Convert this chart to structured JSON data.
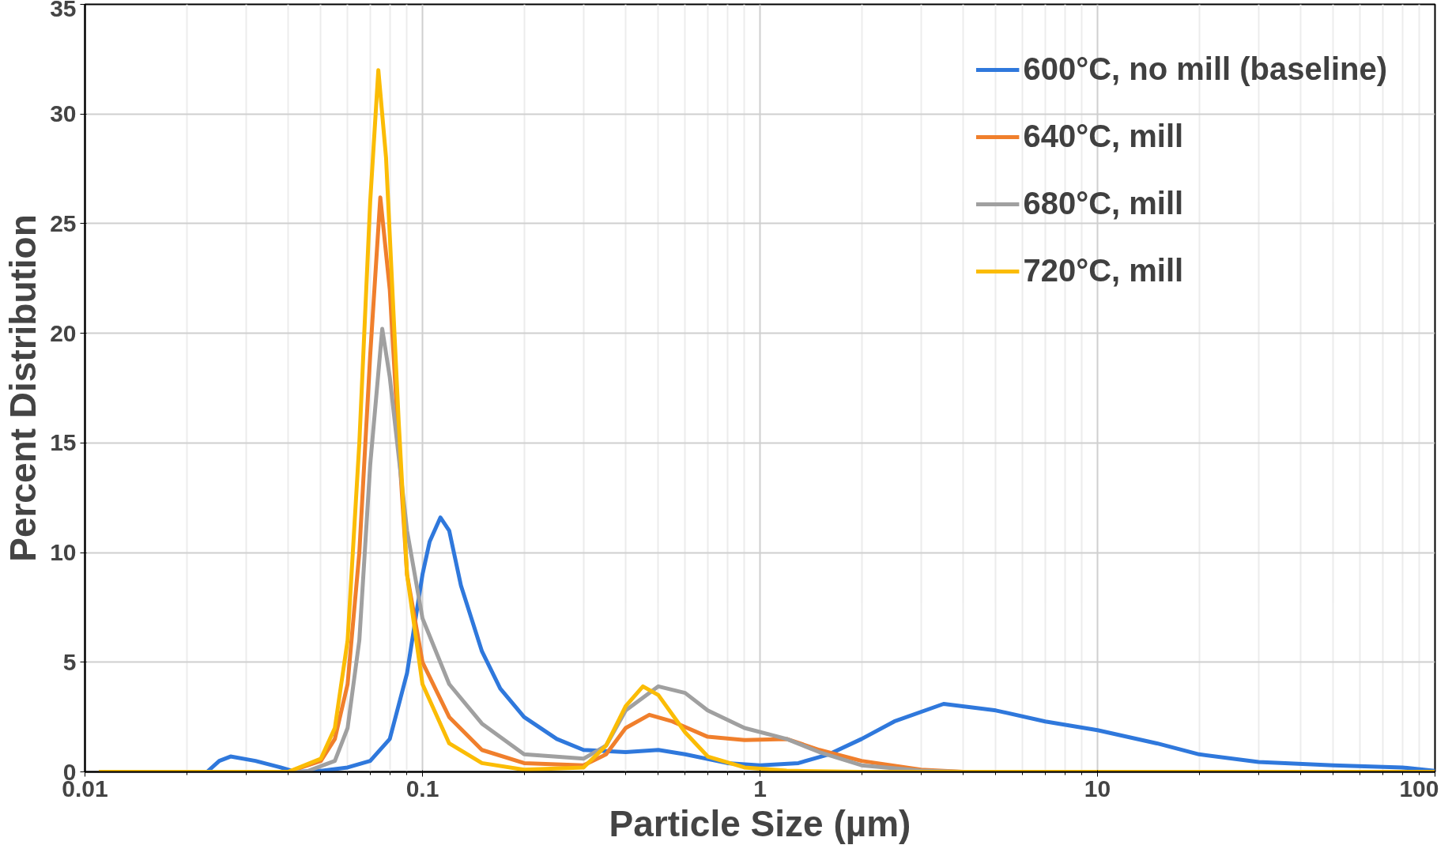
{
  "chart_data": {
    "type": "line",
    "xlabel": "Particle Size (µm)",
    "ylabel": "Percent Distribution",
    "log": "x",
    "xlim": [
      0.01,
      100
    ],
    "xticks": [
      0.01,
      0.1,
      1,
      10,
      100
    ],
    "ylim": [
      0,
      35
    ],
    "yticks": [
      0,
      5,
      10,
      15,
      20,
      25,
      30,
      35
    ],
    "grid": true,
    "legend": "top right",
    "marker": "none",
    "line_style": "solid",
    "series": [
      {
        "name": "600°C, no mill (baseline)",
        "color": "#2f78dc",
        "x": [
          0.011,
          0.023,
          0.025,
          0.027,
          0.032,
          0.038,
          0.042,
          0.05,
          0.06,
          0.07,
          0.08,
          0.09,
          0.1,
          0.105,
          0.113,
          0.12,
          0.13,
          0.15,
          0.17,
          0.2,
          0.25,
          0.3,
          0.4,
          0.5,
          0.6,
          0.8,
          1.0,
          1.3,
          1.6,
          2,
          2.5,
          3.5,
          5,
          7,
          10,
          15,
          20,
          30,
          50,
          80,
          100
        ],
        "values": [
          0,
          0,
          0.5,
          0.7,
          0.5,
          0.2,
          0,
          0.05,
          0.2,
          0.5,
          1.5,
          4.5,
          9,
          10.5,
          11.6,
          11,
          8.5,
          5.5,
          3.8,
          2.5,
          1.5,
          1.0,
          0.9,
          1.0,
          0.8,
          0.4,
          0.3,
          0.4,
          0.8,
          1.5,
          2.3,
          3.1,
          2.8,
          2.3,
          1.9,
          1.3,
          0.8,
          0.45,
          0.3,
          0.2,
          0.05
        ]
      },
      {
        "name": "640°C, mill",
        "color": "#f07f2c",
        "x": [
          0.011,
          0.04,
          0.05,
          0.055,
          0.06,
          0.065,
          0.07,
          0.075,
          0.08,
          0.085,
          0.09,
          0.1,
          0.12,
          0.15,
          0.2,
          0.3,
          0.35,
          0.4,
          0.47,
          0.55,
          0.7,
          0.9,
          1.2,
          1.5,
          2,
          3,
          4,
          100
        ],
        "values": [
          0,
          0,
          0.5,
          1.5,
          4,
          10,
          19,
          26.2,
          22,
          15,
          9,
          5,
          2.5,
          1,
          0.4,
          0.3,
          0.8,
          2,
          2.6,
          2.3,
          1.6,
          1.45,
          1.5,
          1.0,
          0.5,
          0.1,
          0,
          0
        ]
      },
      {
        "name": "680°C, mill",
        "color": "#a0a0a0",
        "x": [
          0.011,
          0.045,
          0.055,
          0.06,
          0.065,
          0.07,
          0.076,
          0.08,
          0.09,
          0.1,
          0.12,
          0.15,
          0.2,
          0.3,
          0.35,
          0.4,
          0.5,
          0.6,
          0.7,
          0.9,
          1.2,
          1.5,
          2,
          3,
          4,
          100
        ],
        "values": [
          0,
          0,
          0.5,
          2,
          6,
          14,
          20.2,
          18,
          11,
          7,
          4,
          2.2,
          0.8,
          0.6,
          1.2,
          2.8,
          3.9,
          3.6,
          2.8,
          2.0,
          1.5,
          0.9,
          0.3,
          0.05,
          0,
          0
        ]
      },
      {
        "name": "720°C, mill",
        "color": "#fbbc05",
        "x": [
          0.011,
          0.04,
          0.05,
          0.055,
          0.06,
          0.065,
          0.07,
          0.074,
          0.078,
          0.085,
          0.09,
          0.1,
          0.12,
          0.15,
          0.2,
          0.3,
          0.35,
          0.4,
          0.45,
          0.5,
          0.6,
          0.7,
          0.9,
          1.2,
          2,
          100
        ],
        "values": [
          0,
          0,
          0.6,
          2,
          6,
          15,
          26,
          32,
          28,
          16,
          9,
          4,
          1.3,
          0.4,
          0.1,
          0.2,
          1.2,
          3,
          3.9,
          3.5,
          1.8,
          0.7,
          0.2,
          0.05,
          0,
          0
        ]
      }
    ]
  }
}
